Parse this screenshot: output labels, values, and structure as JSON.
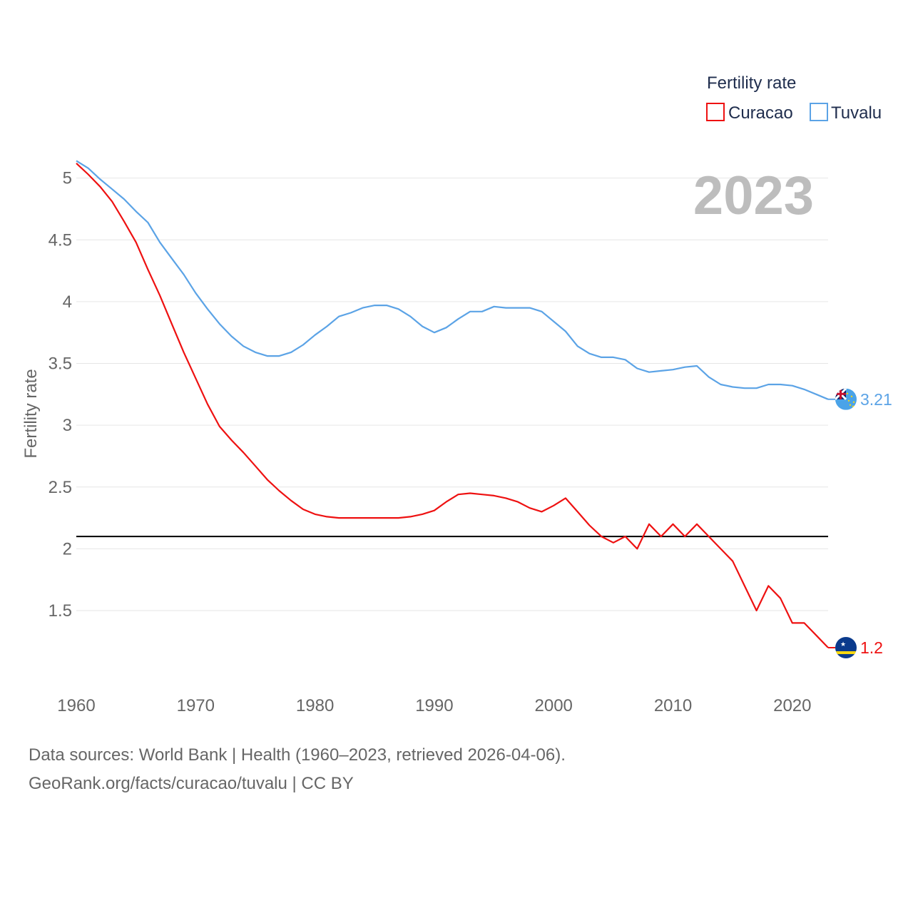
{
  "chart_data": {
    "type": "line",
    "legend_title": "Fertility rate",
    "ylabel": "Fertility rate",
    "xlabel": "",
    "year_overlay": "2023",
    "xlim": [
      1960,
      2023
    ],
    "ylim": [
      0.9,
      5.2
    ],
    "y_ticks": [
      1.5,
      2,
      2.5,
      3,
      3.5,
      4,
      4.5,
      5
    ],
    "y_tick_labels": [
      "1.5",
      "2",
      "2.5",
      "3",
      "3.5",
      "4",
      "4.5",
      "5"
    ],
    "x_ticks": [
      1960,
      1970,
      1980,
      1990,
      2000,
      2010,
      2020
    ],
    "x_tick_labels": [
      "1960",
      "1970",
      "1980",
      "1990",
      "2000",
      "2010",
      "2020"
    ],
    "reference_line": {
      "y": 2.1,
      "color": "#000000"
    },
    "grid": true,
    "legend_position": "top-right",
    "x": [
      1960,
      1961,
      1962,
      1963,
      1964,
      1965,
      1966,
      1967,
      1968,
      1969,
      1970,
      1971,
      1972,
      1973,
      1974,
      1975,
      1976,
      1977,
      1978,
      1979,
      1980,
      1981,
      1982,
      1983,
      1984,
      1985,
      1986,
      1987,
      1988,
      1989,
      1990,
      1991,
      1992,
      1993,
      1994,
      1995,
      1996,
      1997,
      1998,
      1999,
      2000,
      2001,
      2002,
      2003,
      2004,
      2005,
      2006,
      2007,
      2008,
      2009,
      2010,
      2011,
      2012,
      2013,
      2014,
      2015,
      2016,
      2017,
      2018,
      2019,
      2020,
      2021,
      2022,
      2023
    ],
    "series": [
      {
        "name": "Curacao",
        "color": "#ee1111",
        "end_label": "1.2",
        "flag": "curacao-flag",
        "values": [
          5.12,
          5.03,
          4.93,
          4.81,
          4.65,
          4.48,
          4.26,
          4.05,
          3.82,
          3.59,
          3.38,
          3.17,
          2.99,
          2.88,
          2.78,
          2.67,
          2.56,
          2.47,
          2.39,
          2.32,
          2.28,
          2.26,
          2.25,
          2.25,
          2.25,
          2.25,
          2.25,
          2.25,
          2.26,
          2.28,
          2.31,
          2.38,
          2.44,
          2.45,
          2.44,
          2.43,
          2.41,
          2.38,
          2.33,
          2.3,
          2.35,
          2.41,
          2.3,
          2.19,
          2.1,
          2.05,
          2.1,
          2.0,
          2.2,
          2.1,
          2.2,
          2.1,
          2.2,
          2.1,
          2.0,
          1.9,
          1.7,
          1.5,
          1.7,
          1.6,
          1.4,
          1.4,
          1.3,
          1.2
        ]
      },
      {
        "name": "Tuvalu",
        "color": "#5ba3e6",
        "end_label": "3.21",
        "flag": "tuvalu-flag",
        "values": [
          5.14,
          5.08,
          4.99,
          4.91,
          4.83,
          4.73,
          4.64,
          4.48,
          4.35,
          4.22,
          4.07,
          3.94,
          3.82,
          3.72,
          3.64,
          3.59,
          3.56,
          3.56,
          3.59,
          3.65,
          3.73,
          3.8,
          3.88,
          3.91,
          3.95,
          3.97,
          3.97,
          3.94,
          3.88,
          3.8,
          3.75,
          3.79,
          3.86,
          3.92,
          3.92,
          3.96,
          3.95,
          3.95,
          3.95,
          3.92,
          3.84,
          3.76,
          3.64,
          3.58,
          3.55,
          3.55,
          3.53,
          3.46,
          3.43,
          3.44,
          3.45,
          3.47,
          3.48,
          3.39,
          3.33,
          3.31,
          3.3,
          3.3,
          3.33,
          3.33,
          3.32,
          3.29,
          3.25,
          3.21
        ]
      }
    ]
  },
  "footer": {
    "source_line": "Data sources: World Bank | Health (1960–2023, retrieved 2026-04-06).",
    "credit_line": "GeoRank.org/facts/curacao/tuvalu | CC BY"
  }
}
